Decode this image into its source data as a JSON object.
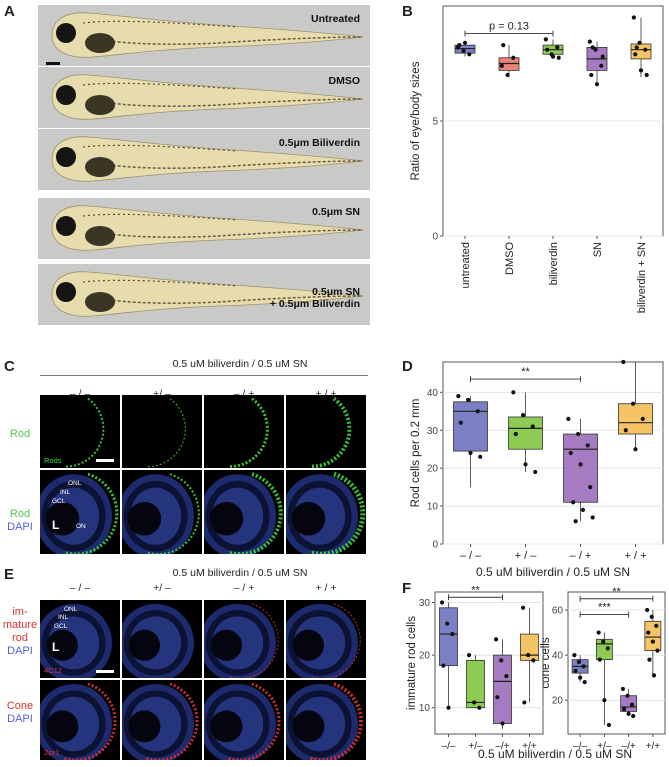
{
  "panels": {
    "a": "A",
    "b": "B",
    "c": "C",
    "d": "D",
    "e": "E",
    "f": "F"
  },
  "panel_a": {
    "labels": [
      "Untreated",
      "DMSO",
      "0.5μm Biliverdin",
      "0.5μm SN",
      "0.5μm SN\n+ 0.5μm Biliverdin"
    ]
  },
  "panel_c": {
    "title": "0.5 uM biliverdin / 0.5 uM SN",
    "conditions": [
      "– / –",
      "+/ –",
      "– / +",
      "+ / +"
    ],
    "row1_label": "Rod",
    "row2_label_a": "Rod",
    "row2_label_b": "DAPI",
    "stain": "Rods",
    "layers": [
      "ONL",
      "INL",
      "GCL",
      "L",
      "ON"
    ]
  },
  "panel_e": {
    "title": "0.5 uM biliverdin / 0.5 uM SN",
    "conditions": [
      "– / –",
      "+/ –",
      "– / +",
      "+ / +"
    ],
    "row1_label_a": "im-",
    "row1_label_b": "mature",
    "row1_label_c": "rod",
    "row1_label_d": "DAPI",
    "row2_label_a": "Cone",
    "row2_label_b": "DAPI",
    "stain1": "4C12",
    "stain2": "Zpr1",
    "layers": [
      "ONL",
      "INL",
      "GCL",
      "L"
    ]
  },
  "colors": {
    "blue": "#7b7fc4",
    "red": "#e8827a",
    "green": "#8ecb55",
    "purple": "#a57cc2",
    "orange": "#f5c464"
  },
  "chart_data": [
    {
      "id": "B",
      "type": "box",
      "categories": [
        "untreated",
        "DMSO",
        "biliverdin",
        "SN",
        "biliverdin + SN"
      ],
      "ylabel": "Ratio of eye/body sizes",
      "ylim": [
        0,
        10
      ],
      "yticks": [
        0,
        5
      ],
      "annotation": "p = 0.13",
      "boxes": [
        {
          "q1": 7.95,
          "median": 8.15,
          "q3": 8.3,
          "lo": 7.8,
          "hi": 8.4
        },
        {
          "q1": 7.2,
          "median": 7.5,
          "q3": 7.75,
          "lo": 6.9,
          "hi": 8.3
        },
        {
          "q1": 7.9,
          "median": 8.1,
          "q3": 8.3,
          "lo": 7.75,
          "hi": 8.55
        },
        {
          "q1": 7.2,
          "median": 7.7,
          "q3": 8.2,
          "lo": 6.5,
          "hi": 8.45
        },
        {
          "q1": 7.7,
          "median": 8.1,
          "q3": 8.35,
          "lo": 6.9,
          "hi": 9.5
        }
      ],
      "points": [
        [
          8.2,
          8.05,
          7.9,
          8.3,
          8.4
        ],
        [
          7.4,
          7.0,
          7.75,
          8.3
        ],
        [
          8.55,
          7.9,
          8.2,
          8.1,
          7.8,
          7.75
        ],
        [
          8.45,
          8.1,
          7.4,
          7.0,
          6.6,
          7.8,
          8.2
        ],
        [
          9.5,
          8.4,
          8.1,
          7.9,
          7.2,
          7.0,
          8.2
        ]
      ]
    },
    {
      "id": "D",
      "type": "box",
      "categories": [
        "– / –",
        "+ / –",
        "– / +",
        "+ / +"
      ],
      "xlabel": "0.5 uM biliverdin / 0.5 uM SN",
      "ylabel": "Rod cells per 0.2 mm",
      "ylim": [
        0,
        48
      ],
      "yticks": [
        0,
        10,
        20,
        30,
        40
      ],
      "annotation": "**",
      "boxes": [
        {
          "q1": 24.5,
          "median": 35,
          "q3": 37.5,
          "lo": 15,
          "hi": 39
        },
        {
          "q1": 25,
          "median": 30.5,
          "q3": 33.5,
          "lo": 19,
          "hi": 40
        },
        {
          "q1": 11,
          "median": 25,
          "q3": 29,
          "lo": 6,
          "hi": 33
        },
        {
          "q1": 29,
          "median": 32,
          "q3": 37,
          "lo": 25,
          "hi": 48
        }
      ],
      "points": [
        [
          39,
          38,
          35,
          32,
          24,
          23
        ],
        [
          40,
          34,
          31,
          29,
          21,
          19
        ],
        [
          33,
          29,
          26,
          24,
          21,
          15,
          11,
          9,
          7,
          6
        ],
        [
          48,
          37,
          33,
          30,
          25
        ]
      ]
    },
    {
      "id": "F-left",
      "type": "box",
      "categories": [
        "–/–",
        "+/–",
        "–/+",
        "+/+"
      ],
      "ylabel": "immature rod cells",
      "ylim": [
        5,
        32
      ],
      "yticks": [
        10,
        20,
        30
      ],
      "annotation": "**",
      "boxes": [
        {
          "q1": 18,
          "median": 24,
          "q3": 29,
          "lo": 10,
          "hi": 30
        },
        {
          "q1": 10,
          "median": 11,
          "q3": 19,
          "lo": 10,
          "hi": 20
        },
        {
          "q1": 7,
          "median": 15,
          "q3": 20,
          "lo": 6,
          "hi": 23
        },
        {
          "q1": 19,
          "median": 20,
          "q3": 24,
          "lo": 11,
          "hi": 29
        }
      ],
      "points": [
        [
          30,
          26,
          24,
          18,
          10
        ],
        [
          20,
          11,
          10
        ],
        [
          23,
          19,
          16,
          12,
          7
        ],
        [
          29,
          20,
          19,
          11
        ]
      ]
    },
    {
      "id": "F-right",
      "type": "box",
      "categories": [
        "–/–",
        "+/–",
        "–/+",
        "+/+"
      ],
      "ylabel": "cone cells",
      "ylim": [
        5,
        68
      ],
      "yticks": [
        20,
        40,
        60
      ],
      "xlabel": "0.5 uM biliverdin / 0.5 uM SN",
      "annotations": [
        "**",
        "***"
      ],
      "boxes": [
        {
          "q1": 32,
          "median": 35,
          "q3": 38,
          "lo": 28,
          "hi": 40
        },
        {
          "q1": 38,
          "median": 45,
          "q3": 47,
          "lo": 9,
          "hi": 50
        },
        {
          "q1": 15,
          "median": 17,
          "q3": 22,
          "lo": 13,
          "hi": 25
        },
        {
          "q1": 42,
          "median": 48,
          "q3": 55,
          "lo": 31,
          "hi": 60
        }
      ],
      "points": [
        [
          40,
          37,
          35,
          33,
          30,
          28
        ],
        [
          50,
          46,
          43,
          38,
          20,
          9
        ],
        [
          25,
          22,
          18,
          16,
          14,
          13
        ],
        [
          60,
          57,
          53,
          50,
          46,
          42,
          38,
          31
        ]
      ]
    }
  ]
}
